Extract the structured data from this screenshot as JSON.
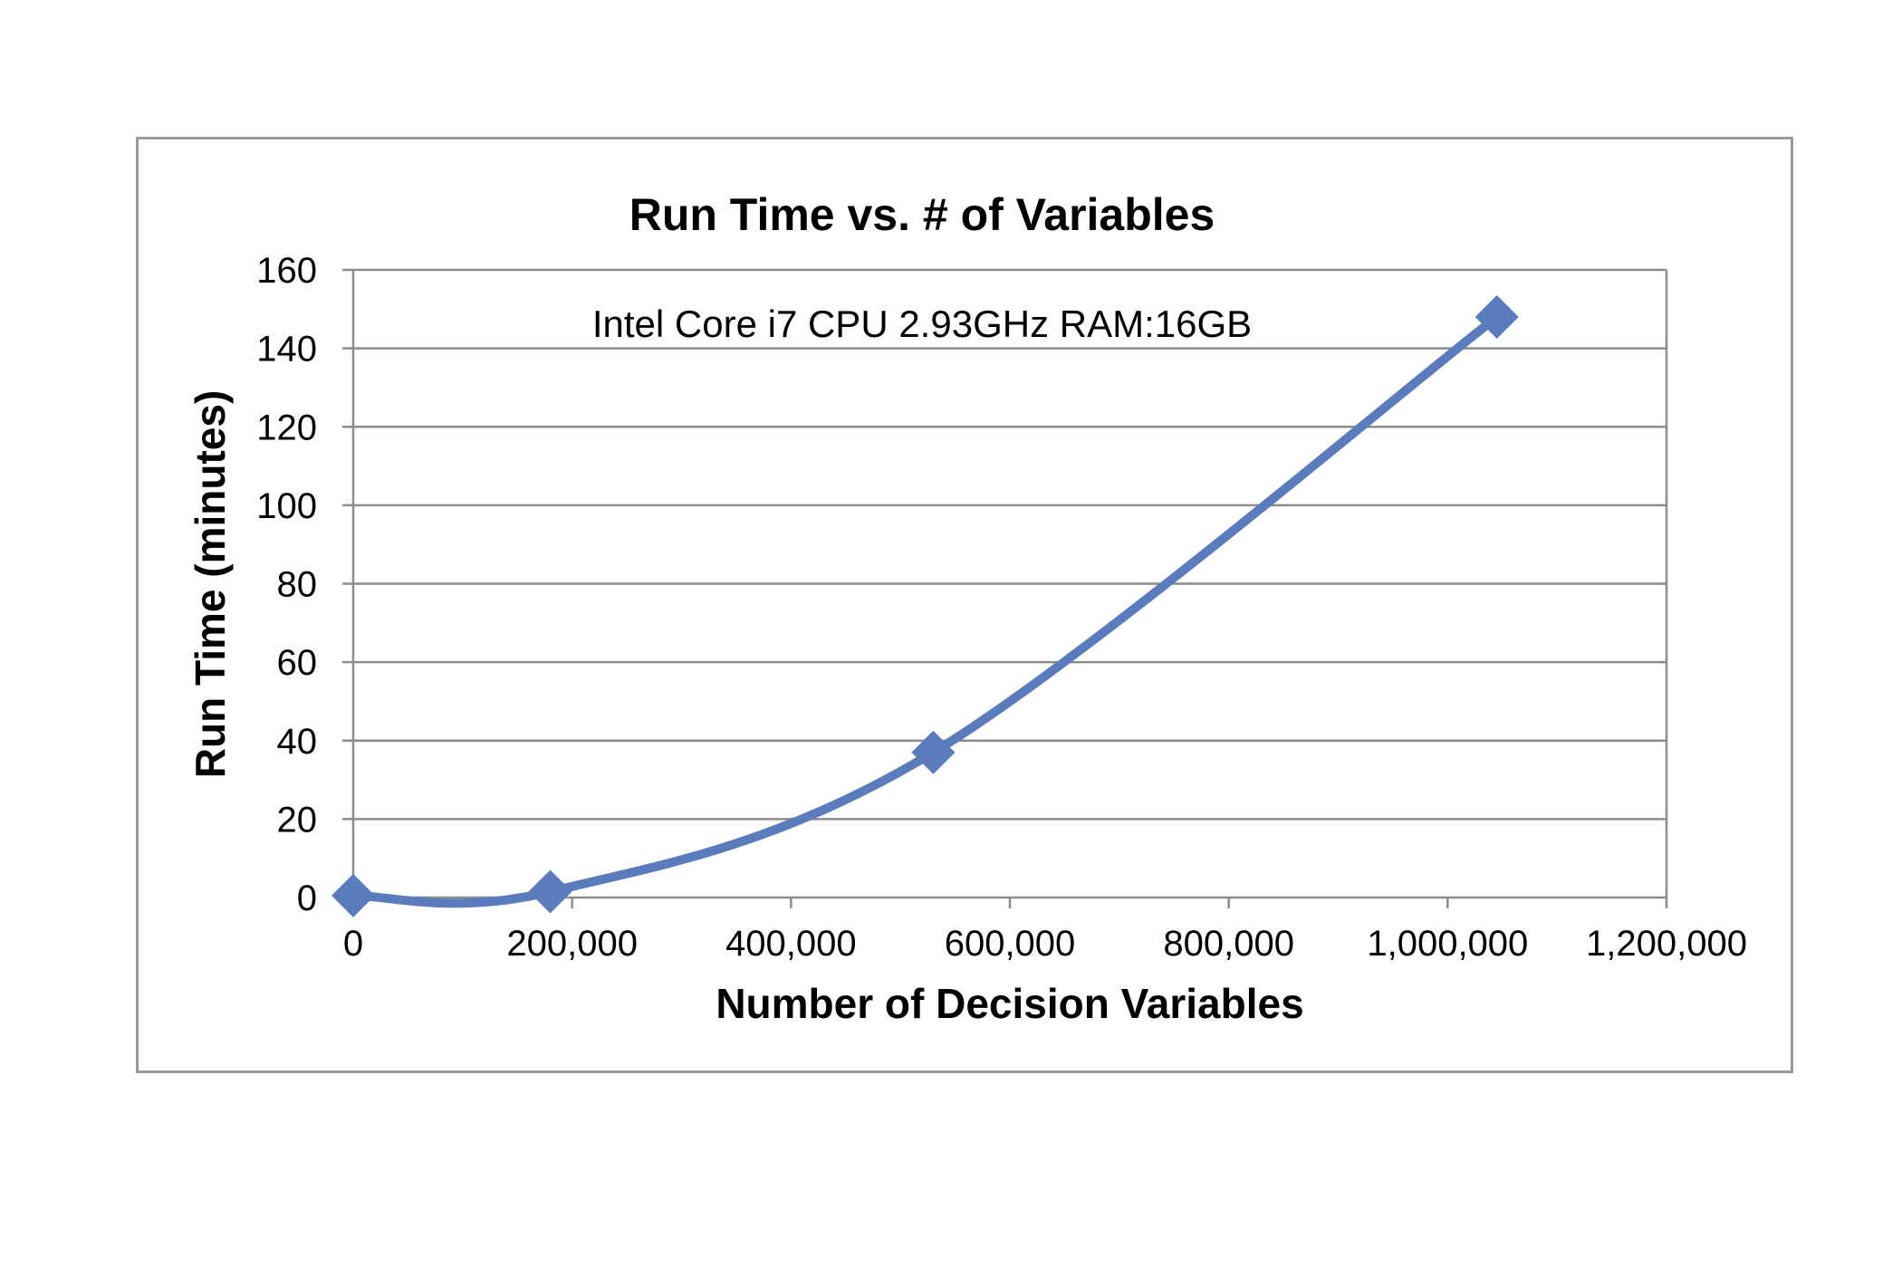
{
  "chart_data": {
    "type": "line",
    "title": "Run Time vs. # of Variables",
    "xlabel": "Number of Decision Variables",
    "ylabel": "Run Time (minutes)",
    "annotation": "Intel Core i7 CPU 2.93GHz RAM:16GB",
    "xlim": [
      0,
      1200000
    ],
    "ylim": [
      0,
      160
    ],
    "x_ticks": [
      0,
      200000,
      400000,
      600000,
      800000,
      1000000,
      1200000
    ],
    "x_tick_labels": [
      "0",
      "200,000",
      "400,000",
      "600,000",
      "800,000",
      "1,000,000",
      "1,200,000"
    ],
    "y_ticks": [
      0,
      20,
      40,
      60,
      80,
      100,
      120,
      140,
      160
    ],
    "y_tick_labels": [
      "0",
      "20",
      "40",
      "60",
      "80",
      "100",
      "120",
      "140",
      "160"
    ],
    "grid": "horizontal",
    "legend": "none",
    "marker": "diamond",
    "smooth": true,
    "series": [
      {
        "color": "#5b7cbc",
        "x": [
          0,
          180000,
          530000,
          1045000
        ],
        "y": [
          0.5,
          1.5,
          37,
          148
        ]
      }
    ]
  }
}
